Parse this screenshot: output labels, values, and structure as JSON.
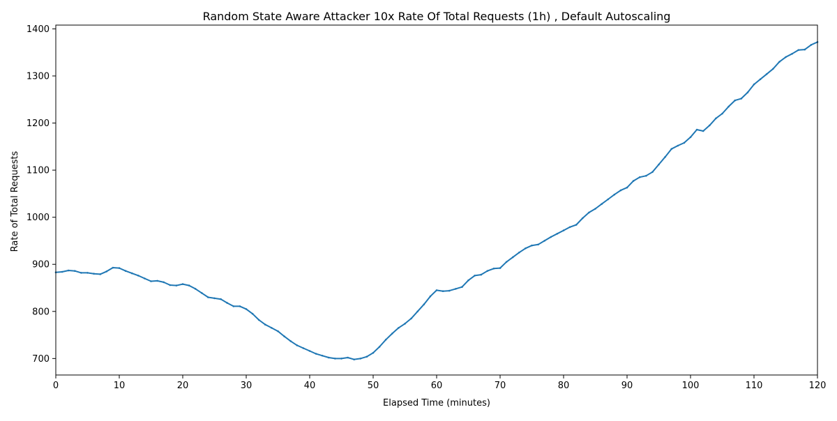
{
  "chart_data": {
    "type": "line",
    "title": "Random State Aware Attacker 10x Rate Of Total Requests (1h) , Default Autoscaling",
    "xlabel": "Elapsed Time (minutes)",
    "ylabel": "Rate of Total Requests",
    "xlim": [
      0,
      120
    ],
    "ylim": [
      665,
      1408
    ],
    "xticks": [
      0,
      10,
      20,
      30,
      40,
      50,
      60,
      70,
      80,
      90,
      100,
      110,
      120
    ],
    "yticks": [
      700,
      800,
      900,
      1000,
      1100,
      1200,
      1300,
      1400
    ],
    "grid": false,
    "legend": "none",
    "color": "#1f77b4",
    "series": [
      {
        "x": [
          0,
          1,
          2,
          3,
          4,
          5,
          6,
          7,
          8,
          9,
          10,
          11,
          12,
          13,
          14,
          15,
          16,
          17,
          18,
          19,
          20,
          21,
          22,
          23,
          24,
          25,
          26,
          27,
          28,
          29,
          30,
          31,
          32,
          33,
          34,
          35,
          36,
          37,
          38,
          39,
          40,
          41,
          42,
          43,
          44,
          45,
          46,
          47,
          48,
          49,
          50,
          51,
          52,
          53,
          54,
          55,
          56,
          57,
          58,
          59,
          60,
          61,
          62,
          63,
          64,
          65,
          66,
          67,
          68,
          69,
          70,
          71,
          72,
          73,
          74,
          75,
          76,
          77,
          78,
          79,
          80,
          81,
          82,
          83,
          84,
          85,
          86,
          87,
          88,
          89,
          90,
          91,
          92,
          93,
          94,
          95,
          96,
          97,
          98,
          99,
          100,
          101,
          102,
          103,
          104,
          105,
          106,
          107,
          108,
          109,
          110,
          111,
          112,
          113,
          114,
          115,
          116,
          117,
          118,
          119,
          120
        ],
        "y": [
          883,
          884,
          887,
          886,
          882,
          882,
          880,
          879,
          885,
          893,
          892,
          886,
          881,
          876,
          870,
          864,
          865,
          862,
          856,
          855,
          858,
          855,
          848,
          839,
          830,
          828,
          826,
          818,
          811,
          811,
          805,
          795,
          782,
          772,
          765,
          758,
          747,
          737,
          728,
          722,
          716,
          710,
          706,
          702,
          700,
          700,
          702,
          698,
          700,
          704,
          712,
          725,
          740,
          753,
          765,
          774,
          785,
          800,
          815,
          832,
          845,
          843,
          844,
          848,
          852,
          866,
          876,
          878,
          886,
          891,
          892,
          905,
          915,
          925,
          934,
          940,
          942,
          950,
          958,
          965,
          972,
          979,
          984,
          998,
          1010,
          1018,
          1028,
          1038,
          1048,
          1057,
          1063,
          1077,
          1085,
          1088,
          1096,
          1112,
          1128,
          1145,
          1152,
          1158,
          1170,
          1186,
          1183,
          1195,
          1210,
          1220,
          1235,
          1248,
          1252,
          1265,
          1282,
          1293,
          1304,
          1315,
          1330,
          1340,
          1347,
          1355,
          1356,
          1366,
          1372
        ]
      }
    ]
  }
}
